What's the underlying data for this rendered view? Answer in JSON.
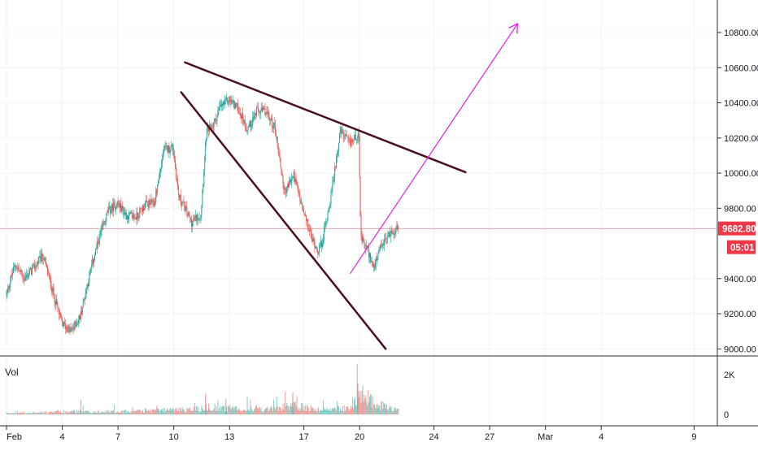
{
  "chart_data": {
    "type": "candlestick",
    "title": "",
    "y_axis": {
      "ticks": [
        "10800.00",
        "10600.00",
        "10400.00",
        "10200.00",
        "10000.00",
        "9800.00",
        "9400.00",
        "9200.00",
        "9000.00"
      ],
      "tick_values": [
        10800,
        10600,
        10400,
        10200,
        10000,
        9800,
        9400,
        9200,
        9000
      ],
      "range": [
        9000,
        10900
      ]
    },
    "x_axis": {
      "ticks": [
        "Feb",
        "4",
        "7",
        "10",
        "13",
        "17",
        "20",
        "24",
        "27",
        "Mar",
        "4",
        "9"
      ],
      "tick_days": [
        1,
        4,
        7,
        10,
        13,
        17,
        20,
        24,
        27,
        30,
        33,
        38
      ],
      "range_days": [
        1,
        38.3
      ]
    },
    "current_price": {
      "value": 9682.8,
      "label": "9682.80",
      "countdown": "05:01",
      "color": "#f23645"
    },
    "volume": {
      "label": "Vol",
      "ticks": [
        "2K",
        "0"
      ],
      "tick_values": [
        2000,
        0
      ]
    },
    "price_path": [
      [
        1.0,
        9300
      ],
      [
        1.5,
        9480
      ],
      [
        2.0,
        9400
      ],
      [
        2.5,
        9460
      ],
      [
        3.0,
        9530
      ],
      [
        3.5,
        9340
      ],
      [
        4.0,
        9150
      ],
      [
        4.5,
        9100
      ],
      [
        5.0,
        9180
      ],
      [
        5.5,
        9420
      ],
      [
        6.0,
        9620
      ],
      [
        6.5,
        9780
      ],
      [
        7.0,
        9830
      ],
      [
        7.5,
        9760
      ],
      [
        8.0,
        9750
      ],
      [
        8.5,
        9820
      ],
      [
        9.0,
        9830
      ],
      [
        9.5,
        10130
      ],
      [
        10.0,
        10150
      ],
      [
        10.3,
        9870
      ],
      [
        10.7,
        9790
      ],
      [
        11.0,
        9720
      ],
      [
        11.5,
        9770
      ],
      [
        11.8,
        10230
      ],
      [
        12.2,
        10280
      ],
      [
        12.5,
        10370
      ],
      [
        13.0,
        10420
      ],
      [
        13.5,
        10370
      ],
      [
        14.0,
        10250
      ],
      [
        14.5,
        10350
      ],
      [
        15.0,
        10350
      ],
      [
        15.5,
        10250
      ],
      [
        16.0,
        9890
      ],
      [
        16.5,
        9990
      ],
      [
        17.0,
        9780
      ],
      [
        17.5,
        9620
      ],
      [
        17.8,
        9560
      ],
      [
        18.0,
        9600
      ],
      [
        18.5,
        9870
      ],
      [
        19.0,
        10240
      ],
      [
        19.5,
        10170
      ],
      [
        20.0,
        10230
      ],
      [
        20.1,
        9630
      ],
      [
        20.5,
        9560
      ],
      [
        20.8,
        9450
      ],
      [
        21.2,
        9580
      ],
      [
        21.6,
        9650
      ],
      [
        22.1,
        9690
      ]
    ],
    "volume_profile": [
      [
        1.0,
        60
      ],
      [
        3.0,
        90
      ],
      [
        4.5,
        150
      ],
      [
        6.0,
        120
      ],
      [
        8.0,
        180
      ],
      [
        10.0,
        220
      ],
      [
        11.0,
        260
      ],
      [
        12.0,
        350
      ],
      [
        13.0,
        280
      ],
      [
        15.0,
        250
      ],
      [
        16.5,
        400
      ],
      [
        18.0,
        230
      ],
      [
        19.5,
        300
      ],
      [
        20.0,
        1000
      ],
      [
        21.0,
        450
      ],
      [
        22.1,
        180
      ]
    ],
    "volume_spikes": [
      [
        5.0,
        700
      ],
      [
        11.7,
        1000
      ],
      [
        16.4,
        1050
      ],
      [
        19.9,
        1500
      ],
      [
        12.8,
        750
      ]
    ],
    "drawings": [
      {
        "name": "upper-trendline",
        "color": "#4a0f1f",
        "from": [
          10.6,
          10630
        ],
        "to": [
          25.7,
          10005
        ]
      },
      {
        "name": "lower-trendline",
        "color": "#4a0f1f",
        "from": [
          10.4,
          10460
        ],
        "to": [
          21.4,
          9000
        ]
      },
      {
        "name": "projection-arrow",
        "color": "#e91ee9",
        "from": [
          19.5,
          9430
        ],
        "to": [
          28.5,
          10850
        ]
      }
    ],
    "colors": {
      "up": "#26a69a",
      "down": "#ef5350",
      "grid": "#f0f3fa",
      "axis": "#131722"
    },
    "grid": true,
    "legend": "none"
  }
}
